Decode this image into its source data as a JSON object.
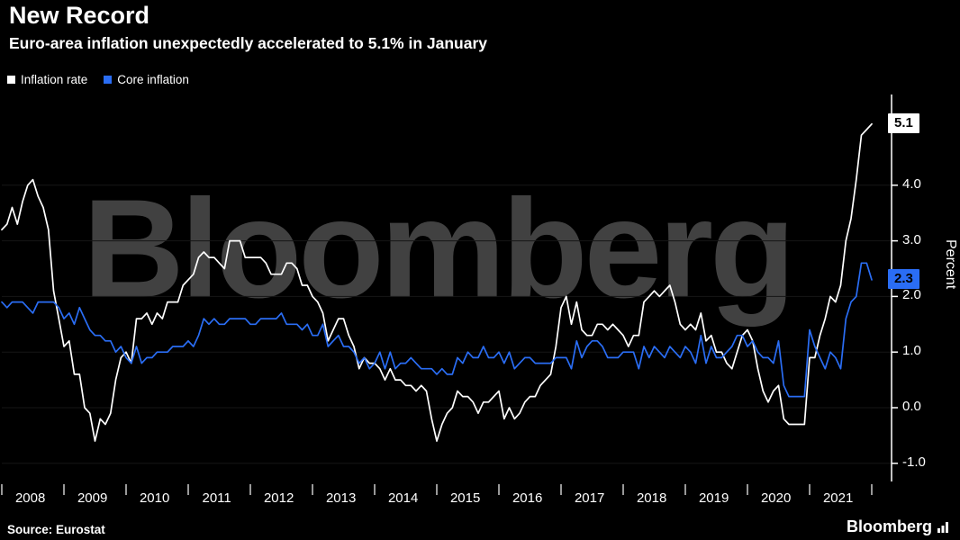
{
  "header": {
    "title": "New Record",
    "subtitle": "Euro-area inflation unexpectedly accelerated to 5.1% in January"
  },
  "legend": [
    {
      "label": "Inflation rate",
      "color": "#ffffff"
    },
    {
      "label": "Core inflation",
      "color": "#2a6df4"
    }
  ],
  "watermark": "Bloomberg",
  "footer": {
    "source": "Source: Eurostat",
    "logo": "Bloomberg"
  },
  "chart_data": {
    "type": "line",
    "title": "New Record",
    "subtitle": "Euro-area inflation unexpectedly accelerated to 5.1% in January",
    "xlabel": "",
    "ylabel": "Percent",
    "x_start": "2008-01",
    "x_end": "2022-01",
    "x_frequency": "monthly",
    "year_labels": [
      "2008",
      "2009",
      "2010",
      "2011",
      "2012",
      "2013",
      "2014",
      "2015",
      "2016",
      "2017",
      "2018",
      "2019",
      "2020",
      "2021"
    ],
    "yticks": [
      "4.0",
      "3.0",
      "2.0",
      "1.0",
      "0.0",
      "-1.0"
    ],
    "ylim": [
      -1.33,
      5.66
    ],
    "grid": false,
    "legend_position": "top-left",
    "series": [
      {
        "name": "Inflation rate",
        "color": "#ffffff",
        "values": [
          3.2,
          3.3,
          3.6,
          3.3,
          3.7,
          4.0,
          4.1,
          3.8,
          3.6,
          3.2,
          2.1,
          1.6,
          1.1,
          1.2,
          0.6,
          0.6,
          0.0,
          -0.1,
          -0.6,
          -0.2,
          -0.3,
          -0.1,
          0.5,
          0.9,
          1.0,
          0.8,
          1.6,
          1.6,
          1.7,
          1.5,
          1.7,
          1.6,
          1.9,
          1.9,
          1.9,
          2.2,
          2.3,
          2.4,
          2.7,
          2.8,
          2.7,
          2.7,
          2.6,
          2.5,
          3.0,
          3.0,
          3.0,
          2.7,
          2.7,
          2.7,
          2.7,
          2.6,
          2.4,
          2.4,
          2.4,
          2.6,
          2.6,
          2.5,
          2.2,
          2.2,
          2.0,
          1.9,
          1.7,
          1.2,
          1.4,
          1.6,
          1.6,
          1.3,
          1.1,
          0.7,
          0.9,
          0.8,
          0.8,
          0.7,
          0.5,
          0.7,
          0.5,
          0.5,
          0.4,
          0.4,
          0.3,
          0.4,
          0.3,
          -0.2,
          -0.6,
          -0.3,
          -0.1,
          0.0,
          0.3,
          0.2,
          0.2,
          0.1,
          -0.1,
          0.1,
          0.1,
          0.2,
          0.3,
          -0.2,
          0.0,
          -0.2,
          -0.1,
          0.1,
          0.2,
          0.2,
          0.4,
          0.5,
          0.6,
          1.1,
          1.8,
          2.0,
          1.5,
          1.9,
          1.4,
          1.3,
          1.3,
          1.5,
          1.5,
          1.4,
          1.5,
          1.4,
          1.3,
          1.1,
          1.3,
          1.3,
          1.9,
          2.0,
          2.1,
          2.0,
          2.1,
          2.2,
          1.9,
          1.5,
          1.4,
          1.5,
          1.4,
          1.7,
          1.2,
          1.3,
          1.0,
          1.0,
          0.8,
          0.7,
          1.0,
          1.3,
          1.4,
          1.2,
          0.7,
          0.3,
          0.1,
          0.3,
          0.4,
          -0.2,
          -0.3,
          -0.3,
          -0.3,
          -0.3,
          0.9,
          0.9,
          1.3,
          1.6,
          2.0,
          1.9,
          2.2,
          3.0,
          3.4,
          4.1,
          4.9,
          5.0,
          5.1
        ]
      },
      {
        "name": "Core inflation",
        "color": "#2a6df4",
        "values": [
          1.9,
          1.8,
          1.9,
          1.9,
          1.9,
          1.8,
          1.7,
          1.9,
          1.9,
          1.9,
          1.9,
          1.8,
          1.6,
          1.7,
          1.5,
          1.8,
          1.6,
          1.4,
          1.3,
          1.3,
          1.2,
          1.2,
          1.0,
          1.1,
          0.9,
          0.8,
          1.1,
          0.8,
          0.9,
          0.9,
          1.0,
          1.0,
          1.0,
          1.1,
          1.1,
          1.1,
          1.2,
          1.1,
          1.3,
          1.6,
          1.5,
          1.6,
          1.5,
          1.5,
          1.6,
          1.6,
          1.6,
          1.6,
          1.5,
          1.5,
          1.6,
          1.6,
          1.6,
          1.6,
          1.7,
          1.5,
          1.5,
          1.5,
          1.4,
          1.5,
          1.3,
          1.3,
          1.5,
          1.1,
          1.2,
          1.3,
          1.1,
          1.1,
          1.0,
          0.8,
          0.9,
          0.7,
          0.8,
          1.0,
          0.7,
          1.0,
          0.7,
          0.8,
          0.8,
          0.9,
          0.8,
          0.7,
          0.7,
          0.7,
          0.6,
          0.7,
          0.6,
          0.6,
          0.9,
          0.8,
          1.0,
          0.9,
          0.9,
          1.1,
          0.9,
          0.9,
          1.0,
          0.8,
          1.0,
          0.7,
          0.8,
          0.9,
          0.9,
          0.8,
          0.8,
          0.8,
          0.8,
          0.9,
          0.9,
          0.9,
          0.7,
          1.2,
          0.9,
          1.1,
          1.2,
          1.2,
          1.1,
          0.9,
          0.9,
          0.9,
          1.0,
          1.0,
          1.0,
          0.7,
          1.1,
          0.9,
          1.1,
          1.0,
          0.9,
          1.1,
          1.0,
          0.9,
          1.1,
          1.0,
          0.8,
          1.3,
          0.8,
          1.1,
          0.9,
          0.9,
          1.0,
          1.1,
          1.3,
          1.3,
          1.1,
          1.2,
          1.0,
          0.9,
          0.9,
          0.8,
          1.2,
          0.4,
          0.2,
          0.2,
          0.2,
          0.2,
          1.4,
          1.1,
          0.9,
          0.7,
          1.0,
          0.9,
          0.7,
          1.6,
          1.9,
          2.0,
          2.6,
          2.6,
          2.3
        ]
      }
    ],
    "end_labels": [
      {
        "text": "5.1",
        "value": 5.1,
        "bg": "#ffffff",
        "fg": "#000000"
      },
      {
        "text": "2.3",
        "value": 2.3,
        "bg": "#2a6df4",
        "fg": "#000000"
      }
    ]
  }
}
